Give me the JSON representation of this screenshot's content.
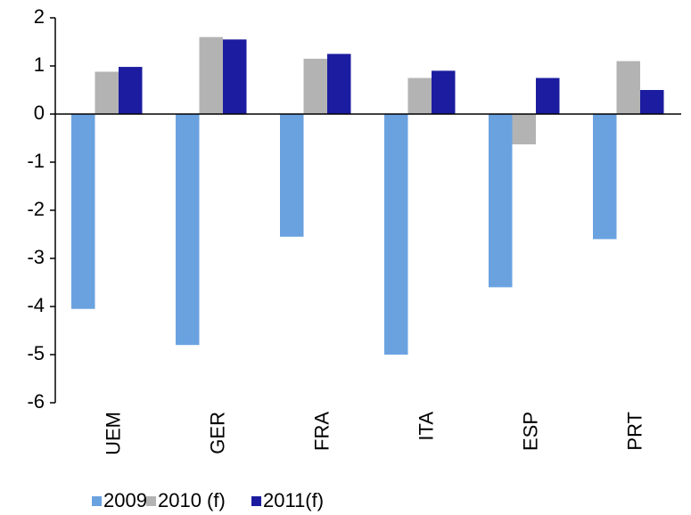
{
  "chart_data": {
    "type": "bar",
    "categories": [
      "UEM",
      "GER",
      "FRA",
      "ITA",
      "ESP",
      "PRT"
    ],
    "series": [
      {
        "name": "2009",
        "color": "#6aa2e0",
        "values": [
          -4.05,
          -4.8,
          -2.55,
          -5.0,
          -3.6,
          -2.6
        ]
      },
      {
        "name": "2010 (f)",
        "color": "#b3b3b3",
        "values": [
          0.88,
          1.6,
          1.15,
          0.75,
          -0.63,
          1.1
        ]
      },
      {
        "name": "2011(f)",
        "color": "#1c1ca0",
        "values": [
          0.98,
          1.55,
          1.25,
          0.9,
          0.75,
          0.5
        ]
      }
    ],
    "ylim": [
      -6,
      2
    ],
    "yticks": [
      -6,
      -5,
      -4,
      -3,
      -2,
      -1,
      0,
      1,
      2
    ],
    "legend": "bottom"
  }
}
